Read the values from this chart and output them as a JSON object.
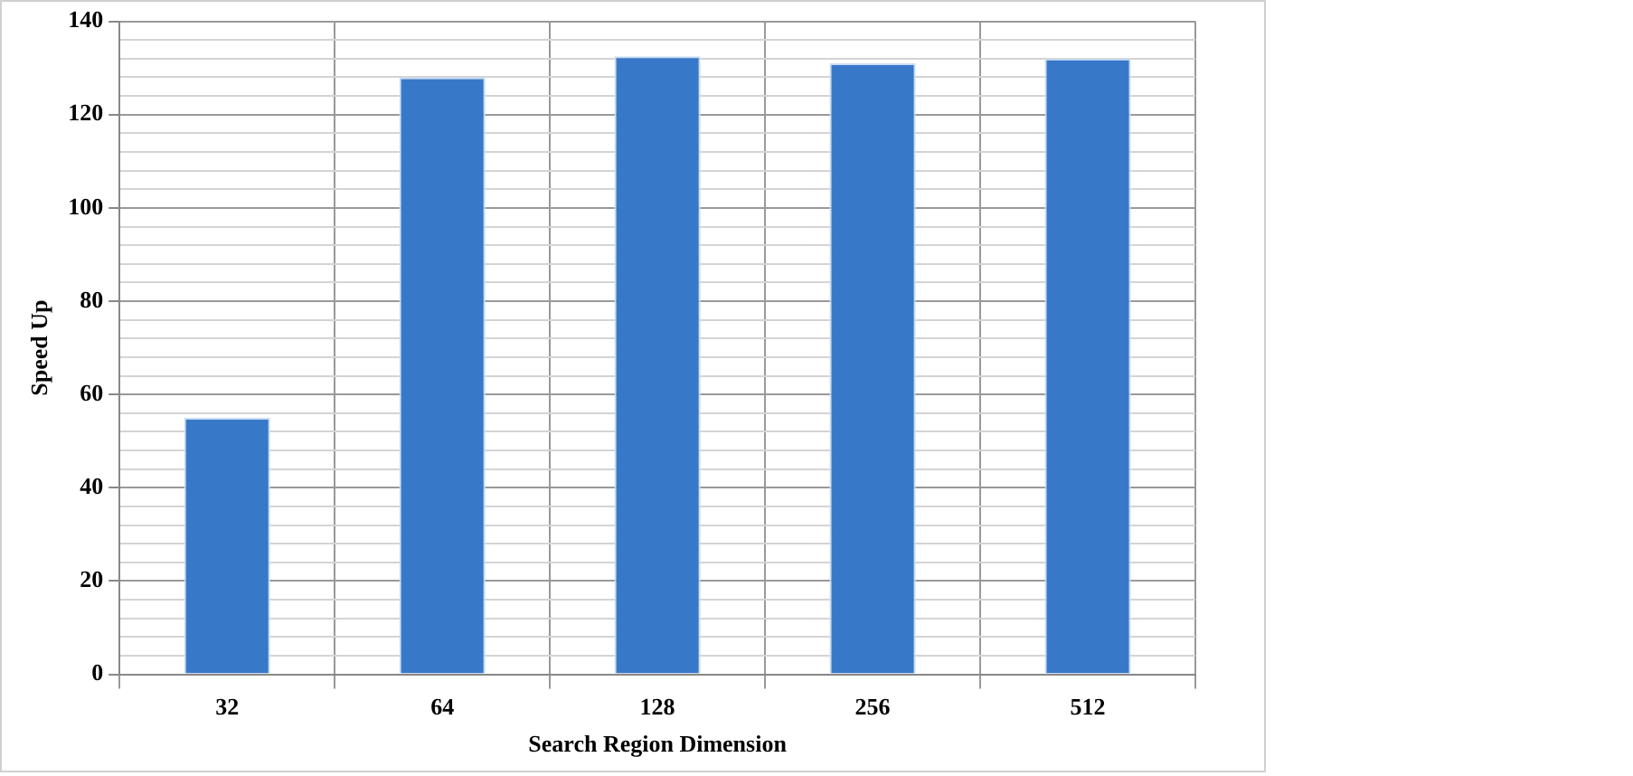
{
  "chart_data": {
    "type": "bar",
    "xlabel": "Search Region Dimension",
    "ylabel": "Speed Up",
    "categories": [
      "32",
      "64",
      "128",
      "256",
      "512"
    ],
    "values": [
      55,
      128,
      132.5,
      131,
      132
    ],
    "color": "#3878c8",
    "ylim": [
      0,
      140
    ],
    "yticks": [
      0,
      {
        "value": 4,
        "label": null
      },
      {
        "value": 8,
        "label": null
      },
      {
        "value": 12,
        "label": null
      },
      {
        "value": 16,
        "label": null
      },
      20,
      {
        "value": 24,
        "label": null
      },
      {
        "value": 28,
        "label": null
      },
      {
        "value": 32,
        "label": null
      },
      {
        "value": 36,
        "label": null
      },
      40,
      {
        "value": 44,
        "label": null
      },
      {
        "value": 48,
        "label": null
      },
      {
        "value": 52,
        "label": null
      },
      {
        "value": 56,
        "label": null
      },
      60,
      {
        "value": 64,
        "label": null
      },
      {
        "value": 68,
        "label": null
      },
      {
        "value": 72,
        "label": null
      },
      {
        "value": 76,
        "label": null
      },
      80,
      {
        "value": 84,
        "label": null
      },
      {
        "value": 88,
        "label": null
      },
      {
        "value": 92,
        "label": null
      },
      {
        "value": 96,
        "label": null
      },
      100,
      {
        "value": 104,
        "label": null
      },
      {
        "value": 108,
        "label": null
      },
      {
        "value": 112,
        "label": null
      },
      {
        "value": 116,
        "label": null
      },
      120,
      {
        "value": 124,
        "label": null
      },
      {
        "value": 128,
        "label": null
      },
      {
        "value": 132,
        "label": null
      },
      {
        "value": 136,
        "label": null
      },
      140
    ],
    "grid": true,
    "legend": false
  }
}
